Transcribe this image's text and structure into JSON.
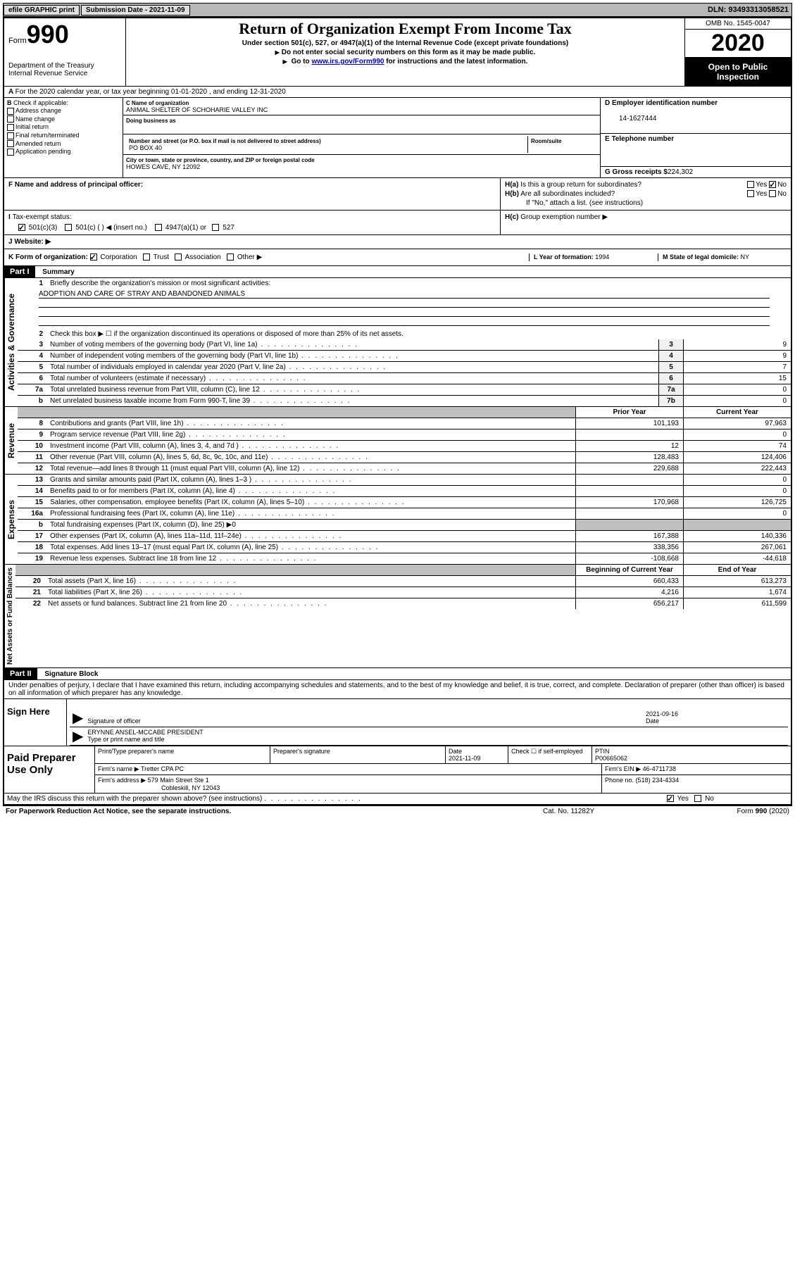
{
  "topbar": {
    "efile": "efile GRAPHIC print",
    "sub_label": "Submission Date - 2021-11-09",
    "dln": "DLN: 93493313058521"
  },
  "header": {
    "form_word": "Form",
    "form_num": "990",
    "dept": "Department of the Treasury",
    "irs": "Internal Revenue Service",
    "title": "Return of Organization Exempt From Income Tax",
    "subtitle": "Under section 501(c), 527, or 4947(a)(1) of the Internal Revenue Code (except private foundations)",
    "instr1": "Do not enter social security numbers on this form as it may be made public.",
    "instr2_pre": "Go to ",
    "instr2_link": "www.irs.gov/Form990",
    "instr2_post": " for instructions and the latest information.",
    "omb": "OMB No. 1545-0047",
    "year": "2020",
    "inspect": "Open to Public Inspection"
  },
  "periodA": "For the 2020 calendar year, or tax year beginning 01-01-2020   , and ending 12-31-2020",
  "checkB": {
    "label": "Check if applicable:",
    "opts": [
      "Address change",
      "Name change",
      "Initial return",
      "Final return/terminated",
      "Amended return",
      "Application pending"
    ]
  },
  "org": {
    "name_label": "Name of organization",
    "name": "ANIMAL SHELTER OF SCHOHARIE VALLEY INC",
    "dba_label": "Doing business as",
    "addr_label": "Number and street (or P.O. box if mail is not delivered to street address)",
    "room_label": "Room/suite",
    "addr": "PO BOX 40",
    "city_label": "City or town, state or province, country, and ZIP or foreign postal code",
    "city": "HOWES CAVE, NY  12092"
  },
  "right": {
    "d_label": "D Employer identification number",
    "ein": "14-1627444",
    "e_label": "E Telephone number",
    "g_label": "G Gross receipts $",
    "g_val": "224,302"
  },
  "f_label": "F  Name and address of principal officer:",
  "h": {
    "a": "Is this a group return for subordinates?",
    "b": "Are all subordinates included?",
    "b_note": "If \"No,\" attach a list. (see instructions)",
    "c": "Group exemption number ▶",
    "yes": "Yes",
    "no": "No"
  },
  "i": {
    "label": "Tax-exempt status:",
    "o1": "501(c)(3)",
    "o2": "501(c) (  ) ◀ (insert no.)",
    "o3": "4947(a)(1) or",
    "o4": "527"
  },
  "j_label": "Website: ▶",
  "k": {
    "label": "K Form of organization:",
    "o1": "Corporation",
    "o2": "Trust",
    "o3": "Association",
    "o4": "Other ▶"
  },
  "l": {
    "label": "L Year of formation:",
    "val": "1994"
  },
  "m": {
    "label": "M State of legal domicile:",
    "val": "NY"
  },
  "part1": {
    "tag": "Part I",
    "title": "Summary"
  },
  "sideLabels": {
    "gov": "Activities & Governance",
    "rev": "Revenue",
    "exp": "Expenses",
    "net": "Net Assets or Fund Balances"
  },
  "summary": {
    "q1": "Briefly describe the organization's mission or most significant activities:",
    "mission": "ADOPTION AND CARE OF STRAY AND ABANDONED ANIMALS",
    "q2": "Check this box ▶ ☐  if the organization discontinued its operations or disposed of more than 25% of its net assets.",
    "lines": [
      {
        "n": "3",
        "t": "Number of voting members of the governing body (Part VI, line 1a)",
        "b": "3",
        "v": "9"
      },
      {
        "n": "4",
        "t": "Number of independent voting members of the governing body (Part VI, line 1b)",
        "b": "4",
        "v": "9"
      },
      {
        "n": "5",
        "t": "Total number of individuals employed in calendar year 2020 (Part V, line 2a)",
        "b": "5",
        "v": "7"
      },
      {
        "n": "6",
        "t": "Total number of volunteers (estimate if necessary)",
        "b": "6",
        "v": "15"
      },
      {
        "n": "7a",
        "t": "Total unrelated business revenue from Part VIII, column (C), line 12",
        "b": "7a",
        "v": "0"
      },
      {
        "n": "b",
        "t": "Net unrelated business taxable income from Form 990-T, line 39",
        "b": "7b",
        "v": "0"
      }
    ],
    "colh": {
      "prior": "Prior Year",
      "current": "Current Year",
      "begin": "Beginning of Current Year",
      "end": "End of Year"
    },
    "rev": [
      {
        "n": "8",
        "t": "Contributions and grants (Part VIII, line 1h)",
        "p": "101,193",
        "c": "97,963"
      },
      {
        "n": "9",
        "t": "Program service revenue (Part VIII, line 2g)",
        "p": "",
        "c": "0"
      },
      {
        "n": "10",
        "t": "Investment income (Part VIII, column (A), lines 3, 4, and 7d )",
        "p": "12",
        "c": "74"
      },
      {
        "n": "11",
        "t": "Other revenue (Part VIII, column (A), lines 5, 6d, 8c, 9c, 10c, and 11e)",
        "p": "128,483",
        "c": "124,406"
      },
      {
        "n": "12",
        "t": "Total revenue—add lines 8 through 11 (must equal Part VIII, column (A), line 12)",
        "p": "229,688",
        "c": "222,443"
      }
    ],
    "exp": [
      {
        "n": "13",
        "t": "Grants and similar amounts paid (Part IX, column (A), lines 1–3 )",
        "p": "",
        "c": "0"
      },
      {
        "n": "14",
        "t": "Benefits paid to or for members (Part IX, column (A), line 4)",
        "p": "",
        "c": "0"
      },
      {
        "n": "15",
        "t": "Salaries, other compensation, employee benefits (Part IX, column (A), lines 5–10)",
        "p": "170,968",
        "c": "126,725"
      },
      {
        "n": "16a",
        "t": "Professional fundraising fees (Part IX, column (A), line 11e)",
        "p": "",
        "c": "0"
      },
      {
        "n": "b",
        "t": "Total fundraising expenses (Part IX, column (D), line 25) ▶0",
        "p": "SHADE",
        "c": "SHADE"
      },
      {
        "n": "17",
        "t": "Other expenses (Part IX, column (A), lines 11a–11d, 11f–24e)",
        "p": "167,388",
        "c": "140,336"
      },
      {
        "n": "18",
        "t": "Total expenses. Add lines 13–17 (must equal Part IX, column (A), line 25)",
        "p": "338,356",
        "c": "267,061"
      },
      {
        "n": "19",
        "t": "Revenue less expenses. Subtract line 18 from line 12",
        "p": "-108,668",
        "c": "-44,618"
      }
    ],
    "net": [
      {
        "n": "20",
        "t": "Total assets (Part X, line 16)",
        "p": "660,433",
        "c": "613,273"
      },
      {
        "n": "21",
        "t": "Total liabilities (Part X, line 26)",
        "p": "4,216",
        "c": "1,674"
      },
      {
        "n": "22",
        "t": "Net assets or fund balances. Subtract line 21 from line 20",
        "p": "656,217",
        "c": "611,599"
      }
    ]
  },
  "part2": {
    "tag": "Part II",
    "title": "Signature Block"
  },
  "perjury": "Under penalties of perjury, I declare that I have examined this return, including accompanying schedules and statements, and to the best of my knowledge and belief, it is true, correct, and complete. Declaration of preparer (other than officer) is based on all information of which preparer has any knowledge.",
  "sign": {
    "here": "Sign Here",
    "sig_label": "Signature of officer",
    "date_label": "Date",
    "date_val": "2021-09-16",
    "name": "ERYNNE ANSEL-MCCABE PRESIDENT",
    "name_label": "Type or print name and title"
  },
  "prep": {
    "label": "Paid Preparer Use Only",
    "h1": "Print/Type preparer's name",
    "h2": "Preparer's signature",
    "h3": "Date",
    "date": "2021-11-09",
    "h4": "Check ☐ if self-employed",
    "h5": "PTIN",
    "ptin": "P00665062",
    "firm_label": "Firm's name    ▶",
    "firm": "Tretter CPA PC",
    "ein_label": "Firm's EIN ▶",
    "ein": "46-4711738",
    "addr_label": "Firm's address ▶",
    "addr1": "579 Main Street Ste 1",
    "addr2": "Cobleskill, NY  12043",
    "phone_label": "Phone no.",
    "phone": "(518) 234-4334"
  },
  "discuss": "May the IRS discuss this return with the preparer shown above? (see instructions)",
  "footer": {
    "left": "For Paperwork Reduction Act Notice, see the separate instructions.",
    "mid": "Cat. No. 11282Y",
    "right_pre": "Form ",
    "right_b": "990",
    "right_post": " (2020)"
  }
}
